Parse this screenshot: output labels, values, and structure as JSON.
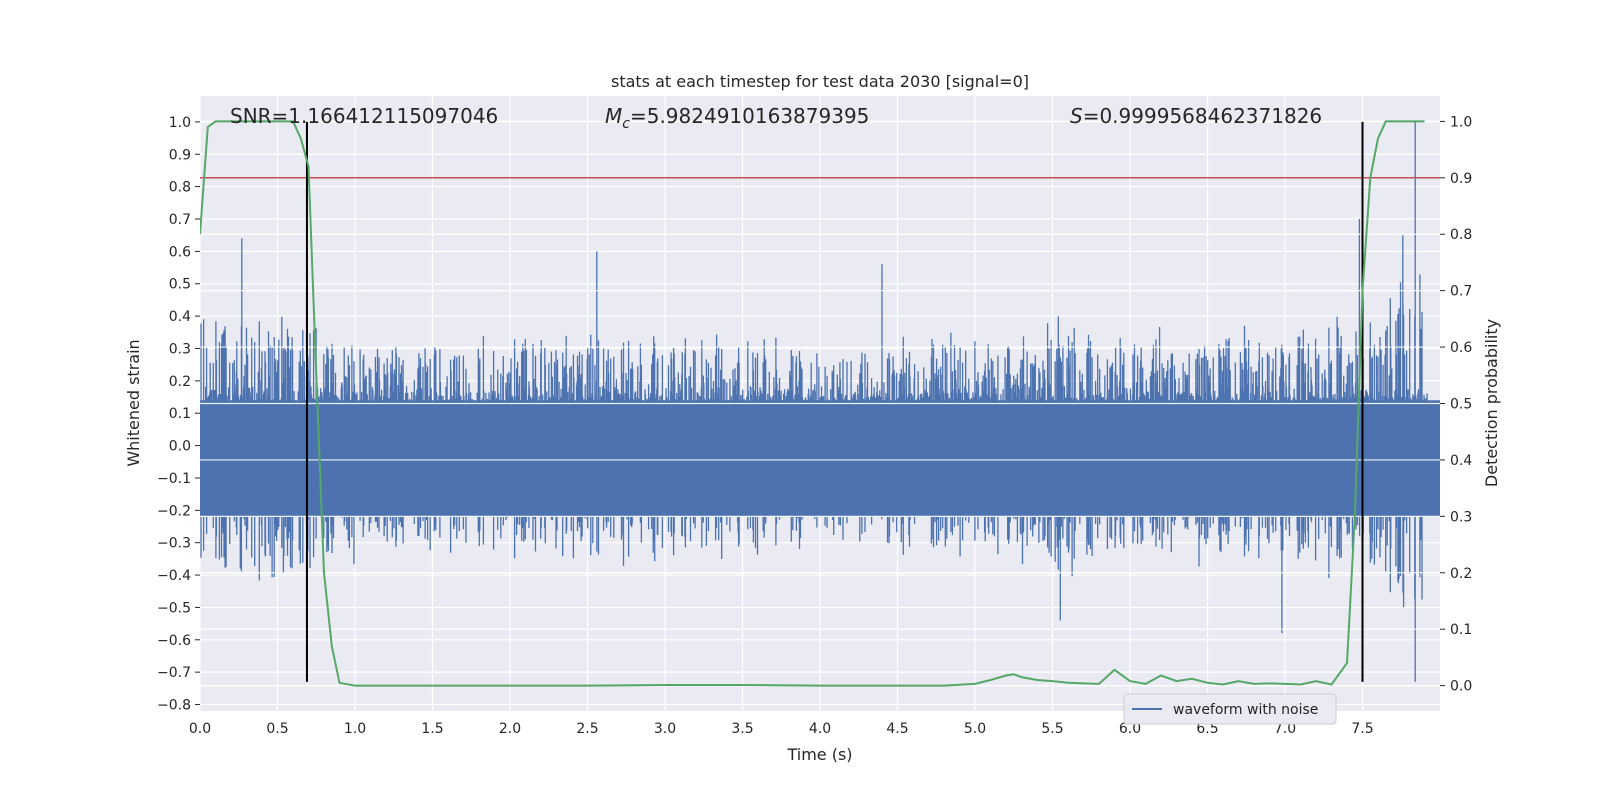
{
  "chart_data": {
    "type": "line",
    "title": "stats at each timestep for test data 2030 [signal=0]",
    "xlabel": "Time (s)",
    "ylabel": "Whitened strain",
    "y2label": "Detection probability",
    "xlim": [
      0.0,
      8.0
    ],
    "ylim": [
      -0.82,
      1.08
    ],
    "y2lim": [
      -0.045,
      1.045
    ],
    "x_ticks": [
      "0.0",
      "0.5",
      "1.0",
      "1.5",
      "2.0",
      "2.5",
      "3.0",
      "3.5",
      "4.0",
      "4.5",
      "5.0",
      "5.5",
      "6.0",
      "6.5",
      "7.0",
      "7.5"
    ],
    "y_ticks": [
      "1.0",
      "0.9",
      "0.8",
      "0.7",
      "0.6",
      "0.5",
      "0.4",
      "0.3",
      "0.2",
      "0.1",
      "0.0",
      "−0.1",
      "−0.2",
      "−0.3",
      "−0.4",
      "−0.5",
      "−0.6",
      "−0.7",
      "−0.8"
    ],
    "y2_ticks": [
      "1.0",
      "0.9",
      "0.8",
      "0.7",
      "0.6",
      "0.5",
      "0.4",
      "0.3",
      "0.2",
      "0.1",
      "0.0"
    ],
    "grid": true,
    "legend_position": "lower-right",
    "annotations": {
      "snr": "SNR=1.166412115097046",
      "mc_symbol": "M",
      "mc_sub": "c",
      "mc_value": "=5.9824910163879395",
      "s_symbol": "S",
      "s_value": "=0.9999568462371826"
    },
    "colors": {
      "background": "#eaeaf2",
      "grid": "#ffffff",
      "waveform": "#4c72b0",
      "probability": "#55a868",
      "threshold": "#c44e52",
      "markers": "#000000"
    },
    "series": [
      {
        "name": "waveform with noise",
        "axis": "left",
        "kind": "noise",
        "baseline_amplitude": 0.16,
        "peak_envelope": [
          [
            0.0,
            0.42
          ],
          [
            0.5,
            0.45
          ],
          [
            1.0,
            0.38
          ],
          [
            2.0,
            0.36
          ],
          [
            3.0,
            0.38
          ],
          [
            4.0,
            0.36
          ],
          [
            5.0,
            0.36
          ],
          [
            5.5,
            0.45
          ],
          [
            6.0,
            0.38
          ],
          [
            7.0,
            0.4
          ],
          [
            7.5,
            0.45
          ],
          [
            7.8,
            0.6
          ],
          [
            8.0,
            0.4
          ]
        ],
        "spikes": [
          [
            0.27,
            0.64
          ],
          [
            0.26,
            -0.38
          ],
          [
            2.56,
            0.6
          ],
          [
            4.4,
            0.56
          ],
          [
            5.55,
            -0.54
          ],
          [
            6.98,
            -0.58
          ],
          [
            7.76,
            0.65
          ],
          [
            7.84,
            1.0
          ],
          [
            7.84,
            -0.73
          ],
          [
            7.48,
            0.7
          ]
        ]
      },
      {
        "name": "",
        "axis": "right",
        "kind": "probability",
        "x": [
          0.0,
          0.05,
          0.1,
          0.2,
          0.3,
          0.4,
          0.5,
          0.6,
          0.65,
          0.7,
          0.75,
          0.8,
          0.85,
          0.9,
          1.0,
          1.5,
          2.0,
          2.5,
          3.0,
          3.5,
          4.0,
          4.5,
          4.8,
          5.0,
          5.1,
          5.2,
          5.25,
          5.3,
          5.4,
          5.5,
          5.6,
          5.7,
          5.8,
          5.9,
          6.0,
          6.1,
          6.2,
          6.3,
          6.4,
          6.5,
          6.6,
          6.7,
          6.8,
          6.9,
          7.0,
          7.1,
          7.2,
          7.3,
          7.4,
          7.45,
          7.5,
          7.55,
          7.6,
          7.65,
          7.7,
          7.8,
          7.9
        ],
        "y": [
          0.8,
          0.99,
          1.0,
          1.0,
          1.0,
          1.0,
          1.0,
          1.0,
          0.97,
          0.92,
          0.55,
          0.2,
          0.07,
          0.005,
          0.0,
          0.0,
          0.0,
          0.0,
          0.001,
          0.001,
          0.0,
          0.0,
          0.0,
          0.003,
          0.01,
          0.018,
          0.02,
          0.015,
          0.01,
          0.008,
          0.005,
          0.004,
          0.003,
          0.028,
          0.008,
          0.003,
          0.018,
          0.008,
          0.012,
          0.005,
          0.002,
          0.008,
          0.003,
          0.004,
          0.003,
          0.002,
          0.008,
          0.002,
          0.04,
          0.3,
          0.7,
          0.9,
          0.97,
          1.0,
          1.0,
          1.0,
          1.0
        ]
      },
      {
        "name": "",
        "axis": "right",
        "kind": "threshold",
        "y": 0.9
      },
      {
        "name": "",
        "axis": "left",
        "kind": "vline",
        "x": [
          0.69,
          7.5
        ],
        "ymin": -0.73,
        "ymax": 1.0
      }
    ]
  }
}
